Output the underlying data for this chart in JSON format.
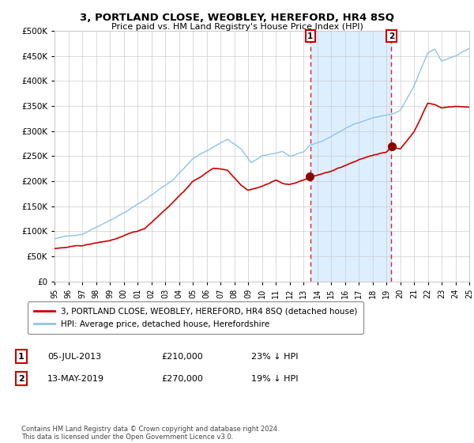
{
  "title": "3, PORTLAND CLOSE, WEOBLEY, HEREFORD, HR4 8SQ",
  "subtitle": "Price paid vs. HM Land Registry's House Price Index (HPI)",
  "legend_line1": "3, PORTLAND CLOSE, WEOBLEY, HEREFORD, HR4 8SQ (detached house)",
  "legend_line2": "HPI: Average price, detached house, Herefordshire",
  "annotation1_date": "05-JUL-2013",
  "annotation1_price": "£210,000",
  "annotation1_note": "23% ↓ HPI",
  "annotation2_date": "13-MAY-2019",
  "annotation2_price": "£270,000",
  "annotation2_note": "19% ↓ HPI",
  "hpi_color": "#8ec4e8",
  "price_color": "#cc0000",
  "shade_color": "#ddeeff",
  "vline_color": "#cc0000",
  "background_color": "#ffffff",
  "grid_color": "#cccccc",
  "ylim": [
    0,
    500000
  ],
  "yticks": [
    0,
    50000,
    100000,
    150000,
    200000,
    250000,
    300000,
    350000,
    400000,
    450000,
    500000
  ],
  "purchase1_year": 2013.5,
  "purchase2_year": 2019.37,
  "purchase1_value": 210000,
  "purchase2_value": 270000,
  "footnote": "Contains HM Land Registry data © Crown copyright and database right 2024.\nThis data is licensed under the Open Government Licence v3.0."
}
